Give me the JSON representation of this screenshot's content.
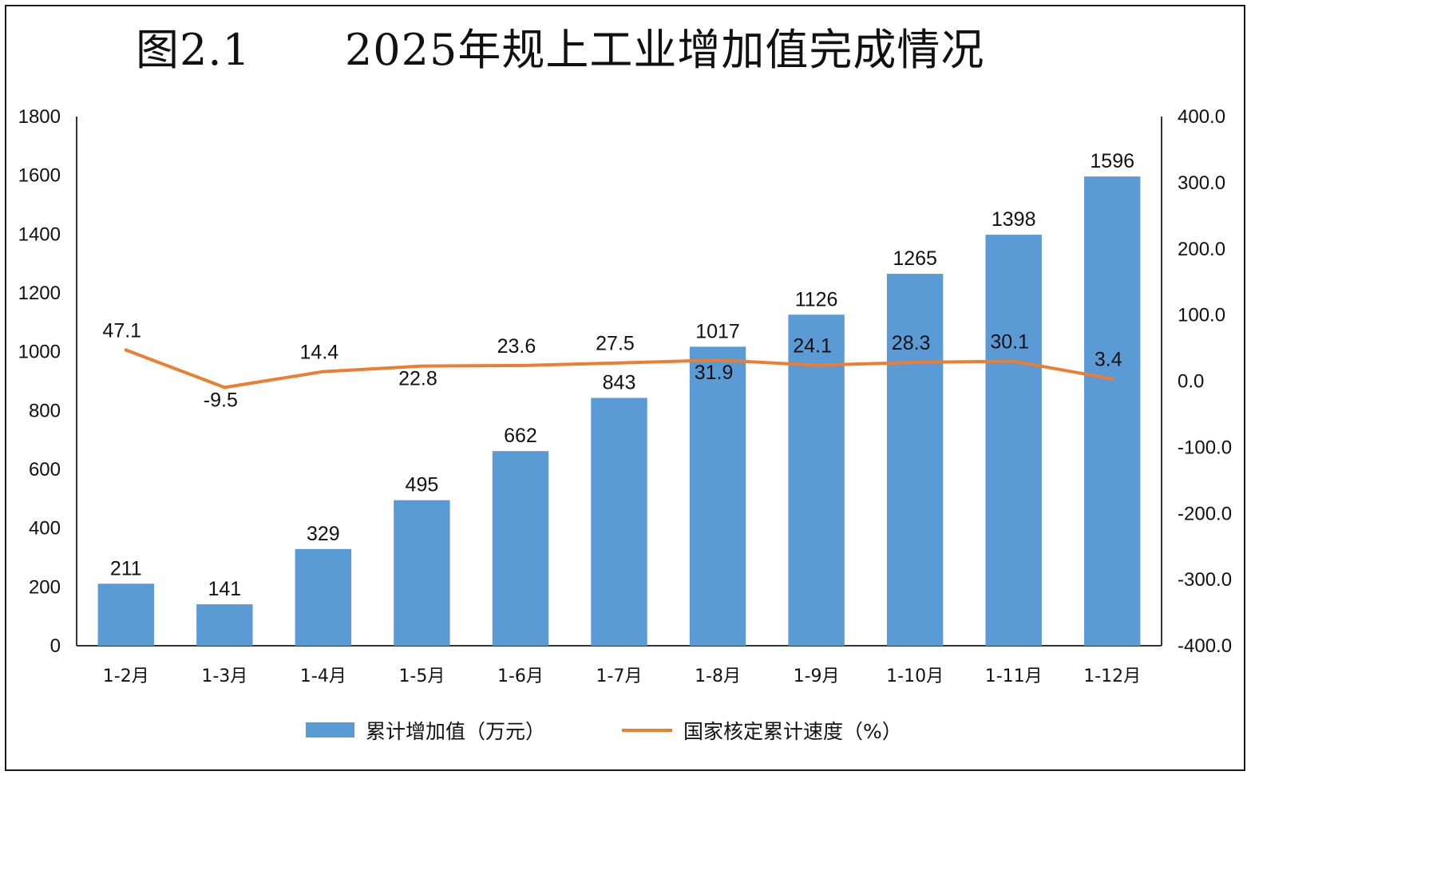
{
  "title": {
    "number": "图2.1",
    "text": "2025年规上工业增加值完成情况"
  },
  "chart_data": {
    "type": "bar",
    "categories": [
      "1-2月",
      "1-3月",
      "1-4月",
      "1-5月",
      "1-6月",
      "1-7月",
      "1-8月",
      "1-9月",
      "1-10月",
      "1-11月",
      "1-12月"
    ],
    "series": [
      {
        "name": "累计增加值（万元）",
        "type": "bar",
        "axis": "left",
        "color": "#5B9BD5",
        "values": [
          211,
          141,
          329,
          495,
          662,
          843,
          1017,
          1126,
          1265,
          1398,
          1596
        ],
        "labels": [
          "211",
          "141",
          "329",
          "495",
          "662",
          "843",
          "1017",
          "1126",
          "1265",
          "1398",
          "1596"
        ]
      },
      {
        "name": "国家核定累计速度（%）",
        "type": "line",
        "axis": "right",
        "color": "#ED7D31",
        "values": [
          47.1,
          -9.5,
          14.4,
          22.8,
          23.6,
          27.5,
          31.9,
          24.1,
          28.3,
          30.1,
          3.4
        ],
        "labels": [
          "47.1",
          "-9.5",
          "14.4",
          "22.8",
          "23.6",
          "27.5",
          "31.9",
          "24.1",
          "28.3",
          "30.1",
          "3.4"
        ]
      }
    ],
    "y_left": {
      "range": [
        0,
        1800
      ],
      "ticks": [
        0,
        200,
        400,
        600,
        800,
        1000,
        1200,
        1400,
        1600,
        1800
      ],
      "tick_labels": [
        "0",
        "200",
        "400",
        "600",
        "800",
        "1000",
        "1200",
        "1400",
        "1600",
        "1800"
      ]
    },
    "y_right": {
      "range": [
        -400,
        400
      ],
      "ticks": [
        -400,
        -300,
        -200,
        -100,
        0,
        100,
        200,
        300,
        400
      ],
      "tick_labels": [
        "-400.0",
        "-300.0",
        "-200.0",
        "-100.0",
        "0.0",
        "100.0",
        "200.0",
        "300.0",
        "400.0"
      ]
    },
    "grid": false,
    "legend": {
      "position": "bottom"
    }
  }
}
